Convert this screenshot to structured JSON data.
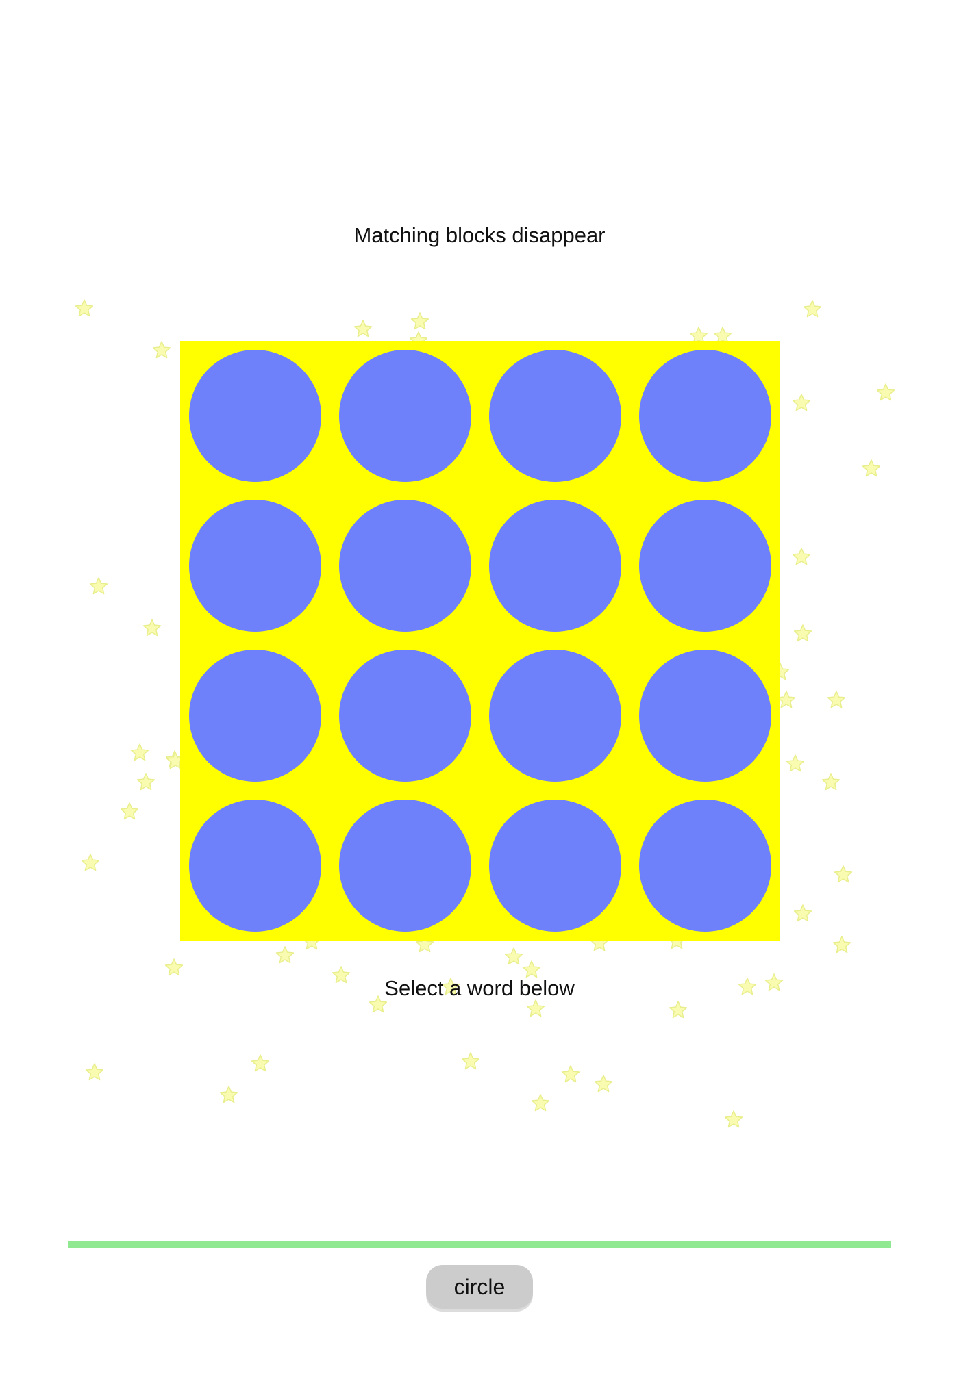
{
  "game": {
    "instruction_top": "Matching blocks disappear",
    "instruction_bottom": "Select a word below",
    "board": {
      "rows": 4,
      "columns": 4,
      "background_color": "#ffff00",
      "block_shape": "circle",
      "block_color": "#6e80fa",
      "blocks": [
        [
          "circle",
          "circle",
          "circle",
          "circle"
        ],
        [
          "circle",
          "circle",
          "circle",
          "circle"
        ],
        [
          "circle",
          "circle",
          "circle",
          "circle"
        ],
        [
          "circle",
          "circle",
          "circle",
          "circle"
        ]
      ]
    },
    "progress": {
      "fraction": 1.0,
      "color": "#90e890"
    },
    "word_options": [
      {
        "label": "circle"
      }
    ],
    "colors": {
      "star_fill": "#f9fcb0",
      "star_stroke": "#e9ee8c",
      "button_bg": "#cccccc"
    }
  }
}
